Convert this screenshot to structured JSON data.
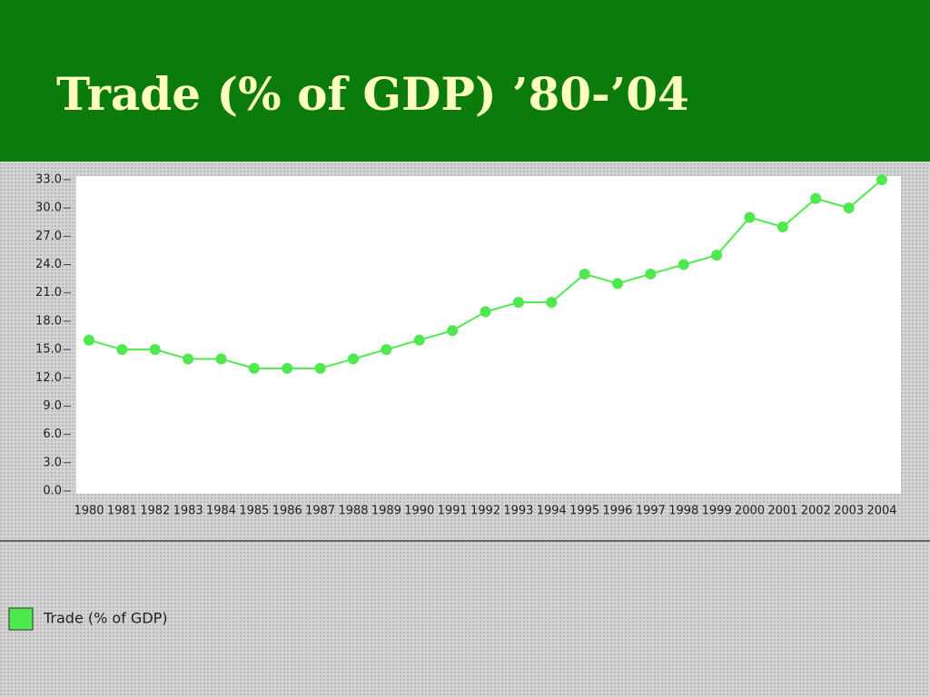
{
  "chart_data": {
    "type": "line",
    "title": "Trade (% of GDP) ’80-’04",
    "categories": [
      "1980",
      "1981",
      "1982",
      "1983",
      "1984",
      "1985",
      "1986",
      "1987",
      "1988",
      "1989",
      "1990",
      "1991",
      "1992",
      "1993",
      "1994",
      "1995",
      "1996",
      "1997",
      "1998",
      "1999",
      "2000",
      "2001",
      "2002",
      "2003",
      "2004"
    ],
    "series": [
      {
        "name": "Trade (% of GDP)",
        "color": "#4fe84f",
        "values": [
          16,
          15,
          15,
          14,
          14,
          13,
          13,
          13,
          14,
          15,
          16,
          17,
          19,
          20,
          20,
          23,
          22,
          23,
          24,
          25,
          29,
          28,
          31,
          30,
          33
        ]
      }
    ],
    "ylim": [
      0,
      33
    ],
    "yticks": [
      {
        "value": 0,
        "label": "0.0"
      },
      {
        "value": 3,
        "label": "3.0"
      },
      {
        "value": 6,
        "label": "6.0"
      },
      {
        "value": 9,
        "label": "9.0"
      },
      {
        "value": 12,
        "label": "12.0"
      },
      {
        "value": 15,
        "label": "15.0"
      },
      {
        "value": 18,
        "label": "18.0"
      },
      {
        "value": 21,
        "label": "21.0"
      },
      {
        "value": 24,
        "label": "24.0"
      },
      {
        "value": 27,
        "label": "27.0"
      },
      {
        "value": 30,
        "label": "30.0"
      },
      {
        "value": 33,
        "label": "33.0"
      }
    ],
    "grid": false,
    "legend": "bottom-left"
  }
}
